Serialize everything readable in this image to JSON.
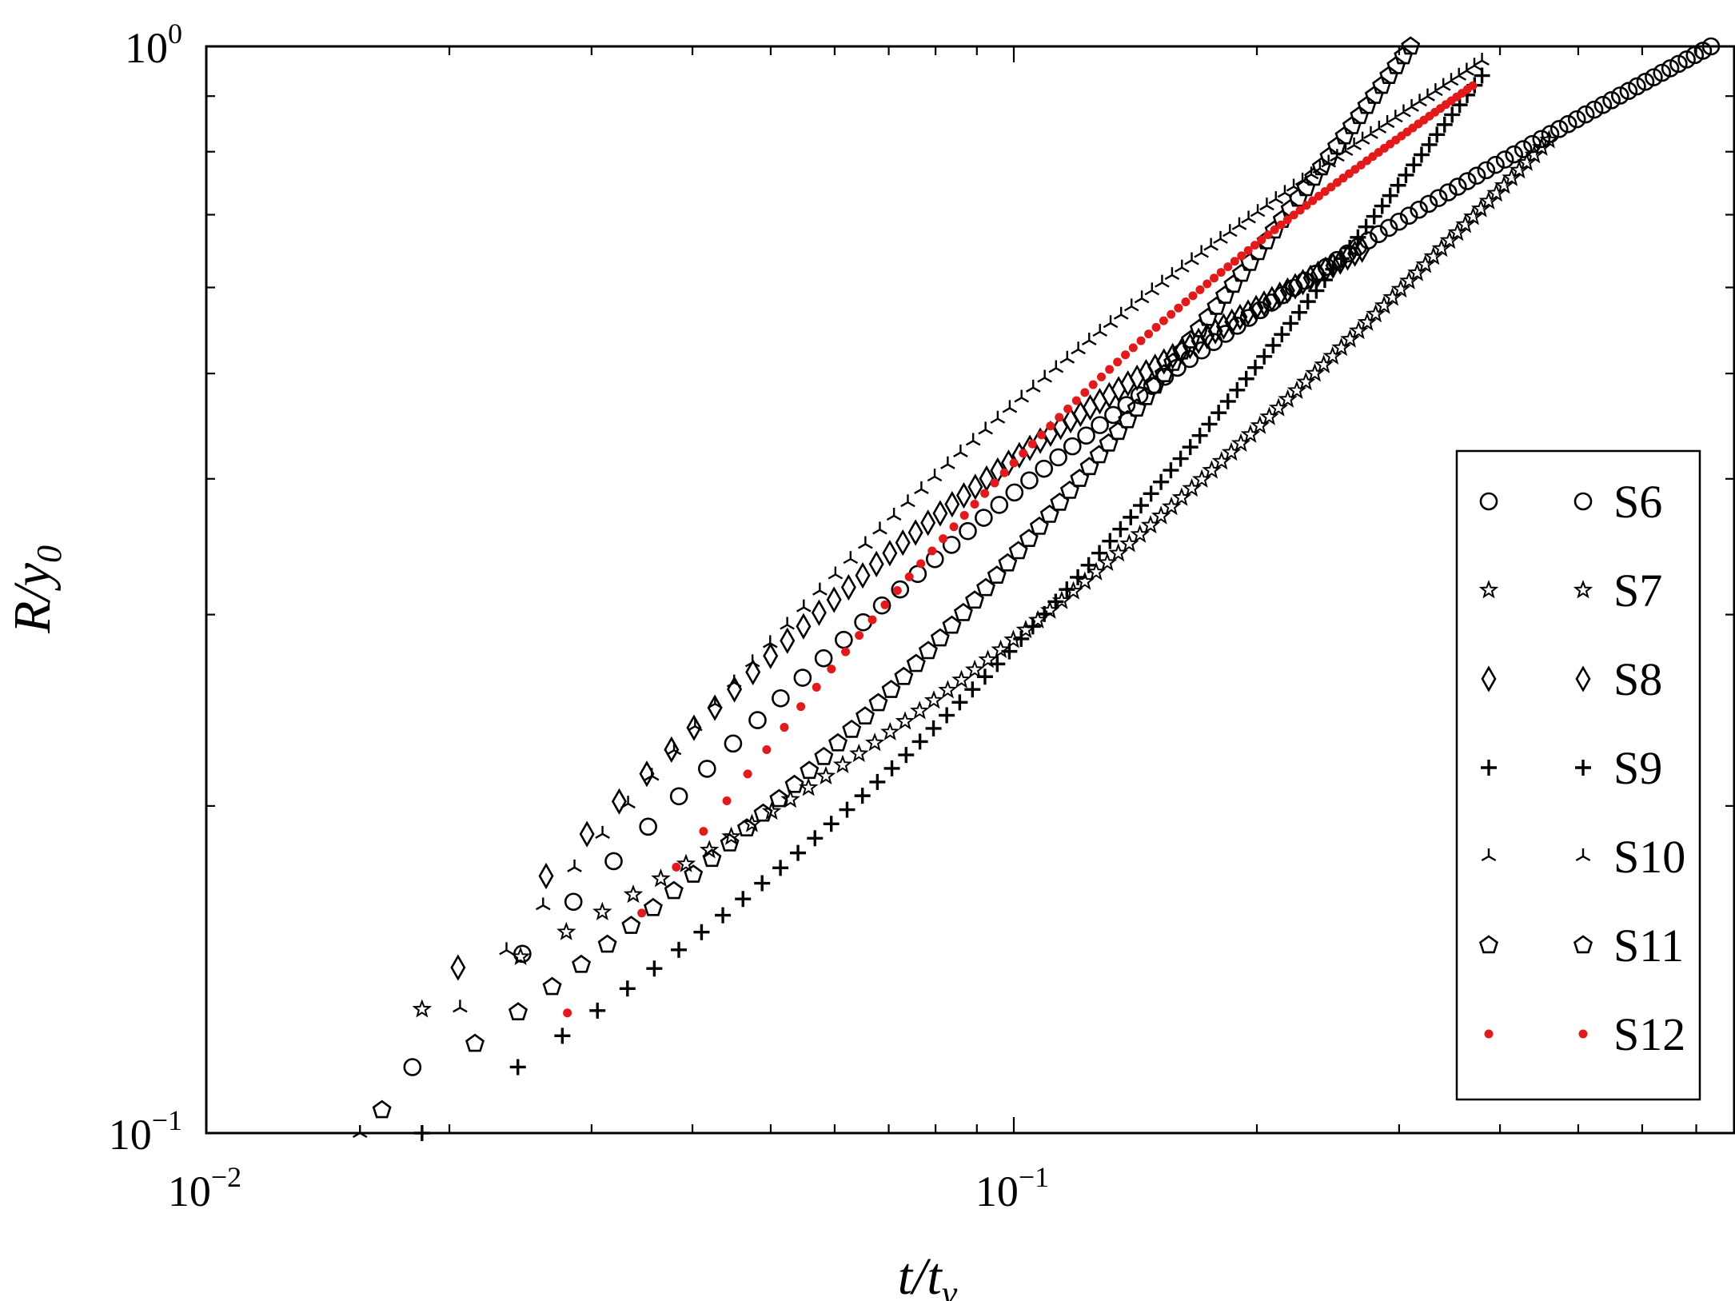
{
  "chart_data": {
    "type": "scatter",
    "x_scale": "log",
    "y_scale": "log",
    "xlim": [
      0.01,
      0.78
    ],
    "ylim": [
      0.1,
      1.0
    ],
    "xlabel": "t/tv",
    "ylabel": "R/y0",
    "x_ticks": [
      {
        "value": 0.01,
        "base": "10",
        "exp": "−2"
      },
      {
        "value": 0.1,
        "base": "10",
        "exp": "−1"
      }
    ],
    "y_ticks": [
      {
        "value": 0.1,
        "base": "10",
        "exp": "−1"
      },
      {
        "value": 1.0,
        "base": "10",
        "exp": "0"
      }
    ],
    "grid": false,
    "legend_position": "right",
    "series": [
      {
        "name": "S6",
        "marker": "circle",
        "color": "#000000",
        "x_range": [
          0.018,
          0.73
        ],
        "y_range": [
          0.115,
          1.0
        ],
        "n": 90
      },
      {
        "name": "S7",
        "marker": "star",
        "color": "#000000",
        "x_range": [
          0.0185,
          0.46
        ],
        "y_range": [
          0.13,
          0.82
        ],
        "n": 85
      },
      {
        "name": "S8",
        "marker": "diamond",
        "color": "#000000",
        "x_range": [
          0.0205,
          0.27
        ],
        "y_range": [
          0.142,
          0.65
        ],
        "n": 70
      },
      {
        "name": "S9",
        "marker": "plus",
        "color": "#000000",
        "x_range": [
          0.0185,
          0.38
        ],
        "y_range": [
          0.1,
          0.94
        ],
        "n": 80
      },
      {
        "name": "S10",
        "marker": "tri",
        "color": "#000000",
        "x_range": [
          0.0155,
          0.38
        ],
        "y_range": [
          0.1,
          0.97
        ],
        "n": 82
      },
      {
        "name": "S11",
        "marker": "pentagon",
        "color": "#000000",
        "x_range": [
          0.0165,
          0.31
        ],
        "y_range": [
          0.105,
          1.0
        ],
        "n": 80
      },
      {
        "name": "S12",
        "marker": "dot",
        "color": "#e31a1c",
        "x_range": [
          0.028,
          0.37
        ],
        "y_range": [
          0.129,
          0.92
        ],
        "n": 95
      }
    ]
  }
}
